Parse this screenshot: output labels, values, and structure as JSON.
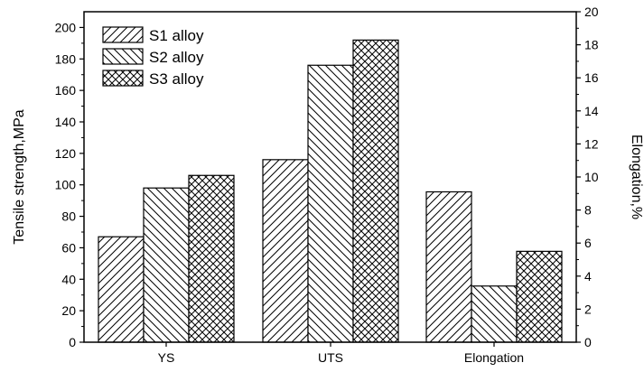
{
  "chart_data": {
    "type": "bar",
    "categories": [
      "YS",
      "UTS",
      "Elongation"
    ],
    "series": [
      {
        "name": "S1 alloy",
        "pattern": "diagonal-forward",
        "values": [
          67,
          116,
          9.1
        ]
      },
      {
        "name": "S2 alloy",
        "pattern": "diagonal-backward",
        "values": [
          98,
          176,
          3.4
        ]
      },
      {
        "name": "S3 alloy",
        "pattern": "crosshatch",
        "values": [
          106,
          192,
          5.5
        ]
      }
    ],
    "value_axis_for_category": [
      "left",
      "left",
      "right"
    ],
    "ylabel_left": "Tensile strength,MPa",
    "ylim_left": [
      0,
      210
    ],
    "yticks_left": [
      0,
      20,
      40,
      60,
      80,
      100,
      120,
      140,
      160,
      180,
      200
    ],
    "ylabel_right": "Elongation,%",
    "ylim_right": [
      0,
      20
    ],
    "yticks_right": [
      0,
      2,
      4,
      6,
      8,
      10,
      12,
      14,
      16,
      18,
      20
    ],
    "legend_position": "top-left",
    "grid": false
  }
}
